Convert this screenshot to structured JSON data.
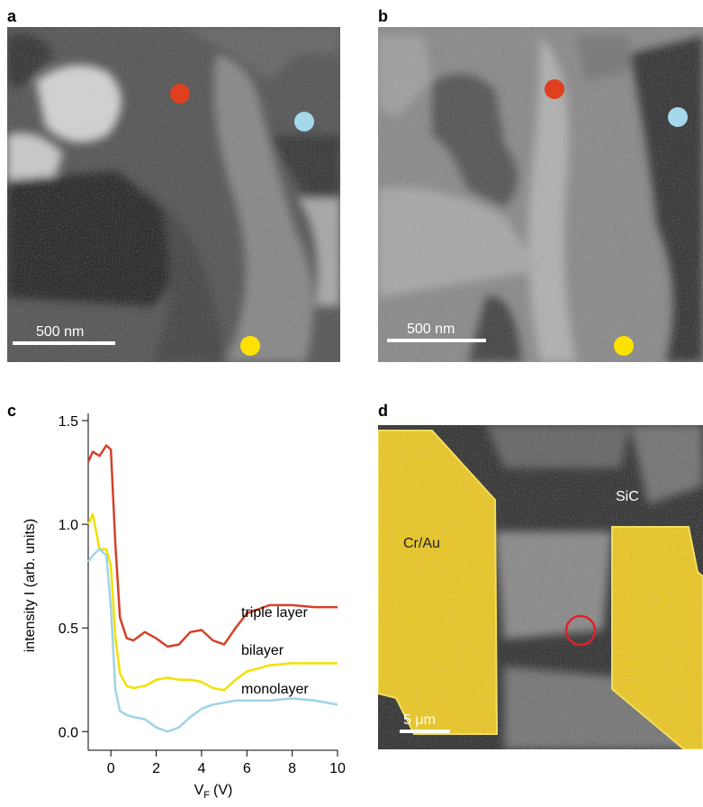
{
  "panels": {
    "a": {
      "label": "a",
      "scale_bar": "500 nm"
    },
    "b": {
      "label": "b",
      "scale_bar": "500 nm"
    },
    "c": {
      "label": "c"
    },
    "d": {
      "label": "d",
      "electrode": "Cr/Au",
      "substrate": "SiC",
      "scale_bar": "5 μm"
    }
  },
  "chart_data": {
    "type": "line",
    "y_label": "intensity I (arb. units)",
    "x_label": {
      "symbol": "V",
      "subscript": "F",
      "unit": "(V)"
    },
    "x": [
      -1,
      -0.8,
      -0.5,
      -0.2,
      0,
      0.2,
      0.4,
      0.7,
      1,
      1.5,
      2,
      2.5,
      3,
      3.5,
      4,
      4.5,
      5,
      5.5,
      6,
      7,
      8,
      9,
      10
    ],
    "series": [
      {
        "name": "triple layer",
        "color": "#d6402a",
        "values": [
          1.3,
          1.35,
          1.33,
          1.38,
          1.36,
          0.9,
          0.55,
          0.45,
          0.44,
          0.48,
          0.45,
          0.41,
          0.42,
          0.48,
          0.49,
          0.44,
          0.42,
          0.5,
          0.57,
          0.61,
          0.61,
          0.6,
          0.6
        ]
      },
      {
        "name": "bilayer",
        "color": "#f2e000",
        "values": [
          1.0,
          1.05,
          0.88,
          0.88,
          0.8,
          0.45,
          0.28,
          0.22,
          0.21,
          0.22,
          0.25,
          0.26,
          0.25,
          0.25,
          0.24,
          0.21,
          0.2,
          0.25,
          0.29,
          0.32,
          0.33,
          0.33,
          0.33
        ]
      },
      {
        "name": "monolayer",
        "color": "#9fd3e8",
        "values": [
          0.82,
          0.85,
          0.88,
          0.85,
          0.6,
          0.2,
          0.1,
          0.08,
          0.07,
          0.06,
          0.02,
          0.0,
          0.02,
          0.07,
          0.11,
          0.13,
          0.14,
          0.15,
          0.15,
          0.15,
          0.16,
          0.15,
          0.13
        ]
      }
    ],
    "xlim": [
      -1,
      10
    ],
    "xticks": [
      0,
      2,
      4,
      6,
      8,
      10
    ],
    "ylim": [
      -0.09,
      1.5
    ],
    "yticks": [
      {
        "value": 0,
        "label": "0.0"
      },
      0.5,
      {
        "value": 1,
        "label": "1.0"
      },
      1.5
    ]
  }
}
